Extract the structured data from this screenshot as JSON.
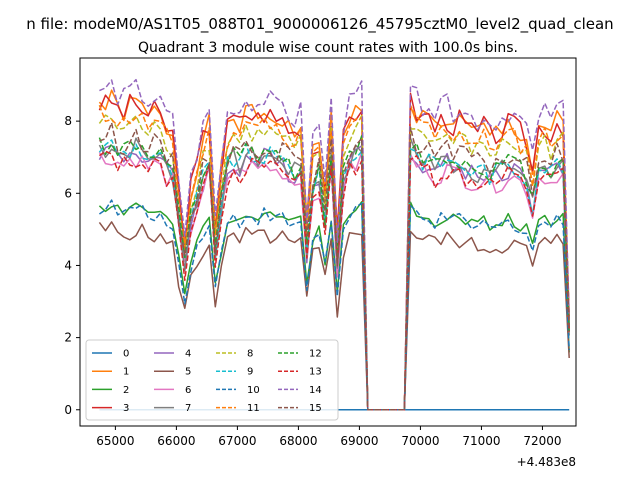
{
  "suptitle": "n file: modeM0/AS1T05_088T01_9000006126_45795cztM0_level2_quad_clean",
  "chart_data": {
    "type": "line",
    "title": "Quadrant 3 module wise count rates with 100.0s bins.",
    "xlabel": "",
    "ylabel": "",
    "x_offset_label": "+4.483e8",
    "xlim": [
      64420,
      72550
    ],
    "ylim": [
      -0.45,
      9.75
    ],
    "xticks": [
      65000,
      66000,
      67000,
      68000,
      69000,
      70000,
      71000,
      72000
    ],
    "yticks": [
      0,
      2,
      4,
      6,
      8
    ],
    "grid": false,
    "legend_position": "lower-left",
    "legend_columns": 4,
    "x_start": 64738,
    "x_step": 100,
    "segments": [
      {
        "from": 0,
        "to": 43,
        "shape": [
          1.0,
          0.99,
          1.01,
          0.98,
          0.97,
          0.99,
          1.0,
          0.98,
          0.96,
          0.97,
          0.95,
          0.92,
          0.9,
          0.72,
          0.55,
          0.72,
          0.8,
          0.88,
          0.93,
          0.6,
          0.78,
          0.92,
          0.95,
          0.93,
          0.97,
          0.96,
          0.95,
          0.97,
          0.96,
          0.94,
          0.95,
          0.92,
          0.9,
          0.93,
          0.6,
          0.85,
          0.88,
          0.72,
          0.95,
          0.55,
          0.88,
          0.95,
          0.97,
          1.0
        ]
      },
      {
        "from": 44,
        "to": 50,
        "value": 0
      },
      {
        "from": 51,
        "to": 77,
        "shape": [
          1.0,
          0.97,
          0.95,
          0.96,
          0.92,
          0.94,
          0.95,
          0.93,
          0.94,
          0.92,
          0.91,
          0.9,
          0.92,
          0.89,
          0.9,
          0.91,
          0.93,
          0.92,
          0.9,
          0.88,
          0.78,
          0.92,
          0.93,
          0.9,
          0.94,
          0.93,
          0.3
        ]
      }
    ],
    "series": [
      {
        "name": "0",
        "color": "#1f77b4",
        "dash": "solid",
        "values": [
          0
        ]
      },
      {
        "name": "1",
        "color": "#ff7f0e",
        "dash": "solid",
        "level": 8.5,
        "jitter": 0.3,
        "seed": 1
      },
      {
        "name": "2",
        "color": "#2ca02c",
        "dash": "solid",
        "level": 5.7,
        "jitter": 0.2,
        "seed": 2
      },
      {
        "name": "3",
        "color": "#d62728",
        "dash": "solid",
        "level": 8.5,
        "jitter": 0.35,
        "seed": 3
      },
      {
        "name": "4",
        "color": "#9467bd",
        "dash": "solid",
        "level": 7.2,
        "jitter": 0.3,
        "seed": 4
      },
      {
        "name": "5",
        "color": "#8c564b",
        "dash": "solid",
        "level": 5.0,
        "jitter": 0.25,
        "seed": 5
      },
      {
        "name": "6",
        "color": "#e377c2",
        "dash": "solid",
        "level": 7.0,
        "jitter": 0.3,
        "seed": 6
      },
      {
        "name": "7",
        "color": "#7f7f7f",
        "dash": "solid",
        "level": 7.3,
        "jitter": 0.3,
        "seed": 7
      },
      {
        "name": "8",
        "color": "#bcbd22",
        "dash": "dashed",
        "level": 8.0,
        "jitter": 0.3,
        "seed": 8
      },
      {
        "name": "9",
        "color": "#17becf",
        "dash": "dashed",
        "level": 7.3,
        "jitter": 0.3,
        "seed": 9
      },
      {
        "name": "10",
        "color": "#1f77b4",
        "dash": "dashed",
        "level": 5.6,
        "jitter": 0.2,
        "seed": 10
      },
      {
        "name": "11",
        "color": "#ff7f0e",
        "dash": "dashed",
        "level": 8.2,
        "jitter": 0.3,
        "seed": 11
      },
      {
        "name": "12",
        "color": "#2ca02c",
        "dash": "dashed",
        "level": 7.4,
        "jitter": 0.3,
        "seed": 12
      },
      {
        "name": "13",
        "color": "#d62728",
        "dash": "dashed",
        "level": 7.0,
        "jitter": 0.3,
        "seed": 13
      },
      {
        "name": "14",
        "color": "#9467bd",
        "dash": "dashed",
        "level": 8.9,
        "jitter": 0.3,
        "seed": 14
      },
      {
        "name": "15",
        "color": "#8c564b",
        "dash": "dashed",
        "level": 7.6,
        "jitter": 0.3,
        "seed": 15
      }
    ]
  }
}
